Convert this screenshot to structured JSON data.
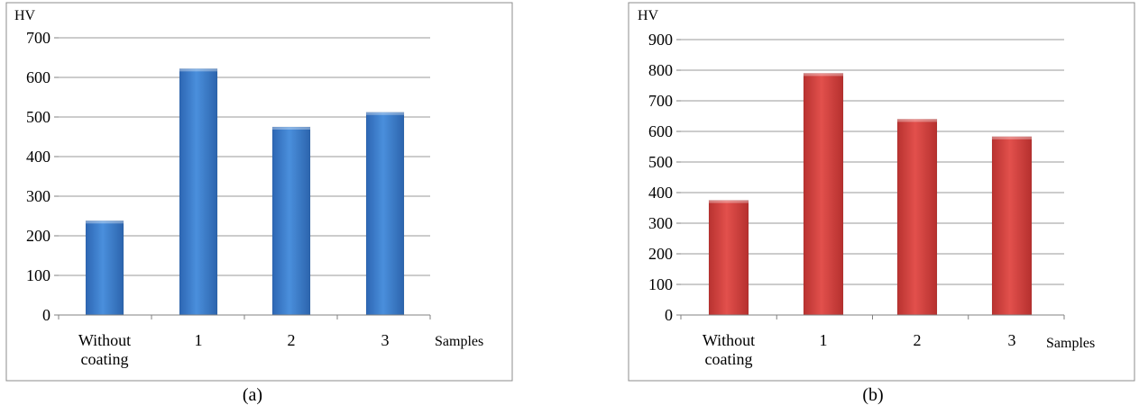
{
  "chart_data": [
    {
      "type": "bar",
      "panel_label": "(a)",
      "ylabel": "HV",
      "xlabel": "Samples",
      "categories": [
        "Without coating",
        "1",
        "2",
        "3"
      ],
      "values": [
        238,
        622,
        475,
        512
      ],
      "ylim": [
        0,
        700
      ],
      "yticks": [
        "0",
        "100",
        "200",
        "300",
        "400",
        "500",
        "600",
        "700"
      ],
      "grid": true,
      "color": "#3f7fcb"
    },
    {
      "type": "bar",
      "panel_label": "(b)",
      "ylabel": "HV",
      "xlabel": "Samples",
      "categories": [
        "Without coating",
        "1",
        "2",
        "3"
      ],
      "values": [
        375,
        790,
        640,
        583
      ],
      "ylim": [
        0,
        900
      ],
      "yticks": [
        "0",
        "100",
        "200",
        "300",
        "400",
        "500",
        "600",
        "700",
        "800",
        "900"
      ],
      "grid": true,
      "color": "#d2403d"
    }
  ]
}
